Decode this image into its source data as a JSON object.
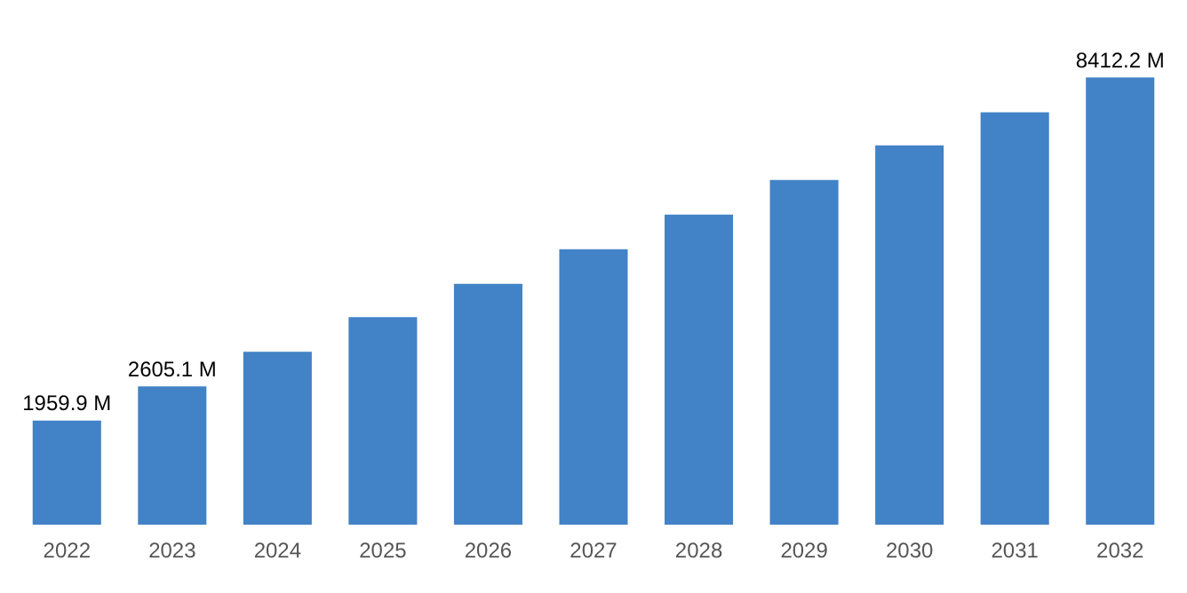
{
  "chart_data": {
    "type": "bar",
    "categories": [
      "2022",
      "2023",
      "2024",
      "2025",
      "2026",
      "2027",
      "2028",
      "2029",
      "2030",
      "2031",
      "2032"
    ],
    "values": [
      1959.9,
      2605.1,
      3256,
      3907,
      4529,
      5180,
      5831,
      6482,
      7134,
      7755,
      8412.2
    ],
    "value_labels": [
      "1959.9 M",
      "2605.1 M",
      null,
      null,
      null,
      null,
      null,
      null,
      null,
      null,
      "8412.2 M"
    ],
    "color": "#4282c6",
    "grid": false,
    "legend": false
  }
}
